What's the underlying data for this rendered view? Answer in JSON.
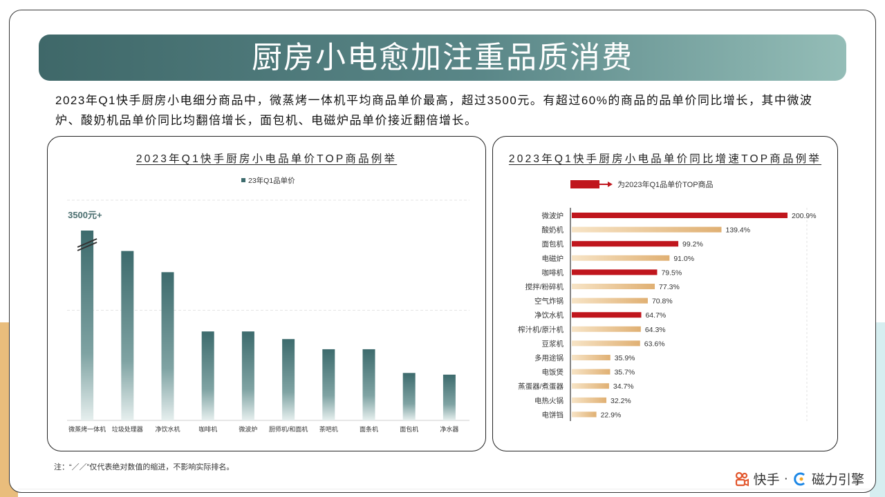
{
  "header": {
    "title": "厨房小电愈加注重品质消费"
  },
  "intro": "2023年Q1快手厨房小电细分商品中，微蒸烤一体机平均商品单价最高，超过3500元。有超过60%的商品的品单价同比增长，其中微波炉、酸奶机品单价同比均翻倍增长，面包机、电磁炉品单价接近翻倍增长。",
  "note": "注：“／／”仅代表绝对数值的缩进，不影响实际排名。",
  "brand": {
    "kuaishou": "快手",
    "separator": "·",
    "cili": "磁力引擎"
  },
  "colors": {
    "teal_dark": "#3d6b6d",
    "teal_light": "#e6efee",
    "red": "#c0161d",
    "gold_dark": "#e0b073",
    "gold_light": "#f7e4c6"
  },
  "chart_data": [
    {
      "type": "bar",
      "title": "2023年Q1快手厨房小电品单价TOP商品例举",
      "legend": [
        "23年Q1品单价"
      ],
      "categories": [
        "微蒸烤一体机",
        "垃圾处理器",
        "净饮水机",
        "咖啡机",
        "微波炉",
        "厨师机/和面机",
        "茶吧机",
        "面条机",
        "面包机",
        "净水器"
      ],
      "values": [
        3500,
        2000,
        1750,
        1050,
        1050,
        960,
        840,
        840,
        560,
        540
      ],
      "annotations": [
        "3500元+"
      ],
      "axis_break": true,
      "ylim": [
        0,
        2600
      ],
      "grid": true
    },
    {
      "type": "bar",
      "orientation": "horizontal",
      "title": "2023年Q1快手厨房小电品单价同比增速TOP商品例举",
      "legend": [
        "为2023年Q1品单价TOP商品"
      ],
      "categories": [
        "微波炉",
        "酸奶机",
        "面包机",
        "电磁炉",
        "咖啡机",
        "搅拌/粉碎机",
        "空气炸锅",
        "净饮水机",
        "榨汁机/原汁机",
        "豆浆机",
        "多用途锅",
        "电饭煲",
        "蒸蛋器/煮蛋器",
        "电热火锅",
        "电饼铛"
      ],
      "values": [
        200.9,
        139.4,
        99.2,
        91.0,
        79.5,
        77.3,
        70.8,
        64.7,
        64.3,
        63.6,
        35.9,
        35.7,
        34.7,
        32.2,
        22.9
      ],
      "labels": [
        "200.9%",
        "139.4%",
        "99.2%",
        "91.0%",
        "79.5%",
        "77.3%",
        "70.8%",
        "64.7%",
        "64.3%",
        "63.6%",
        "35.9%",
        "35.7%",
        "34.7%",
        "32.2%",
        "22.9%"
      ],
      "highlight": [
        true,
        false,
        true,
        false,
        true,
        false,
        false,
        true,
        false,
        false,
        false,
        false,
        false,
        false,
        false
      ],
      "xlim": [
        0,
        240
      ]
    }
  ]
}
